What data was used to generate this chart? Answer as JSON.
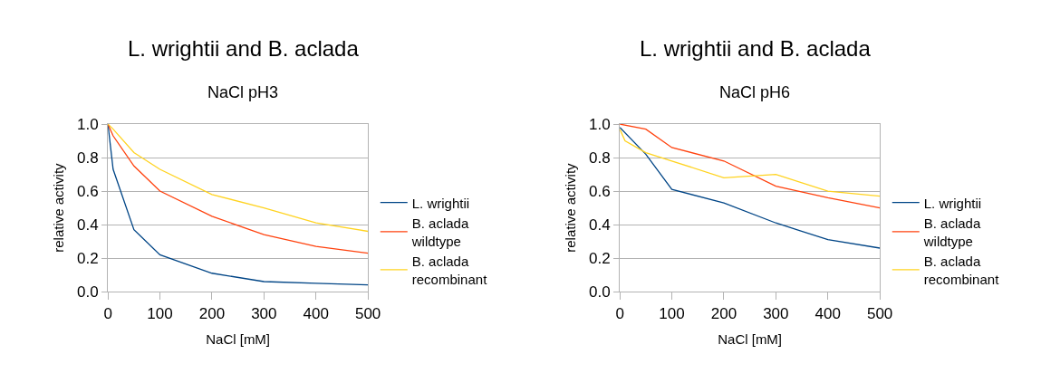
{
  "chart_data": [
    {
      "type": "line",
      "title": "L. wrightii and B. aclada",
      "subtitle": "NaCl pH3",
      "xlabel": "NaCl [mM]",
      "ylabel": "relative activity",
      "xlim": [
        0,
        500
      ],
      "xticks": [
        0,
        100,
        200,
        300,
        400,
        500
      ],
      "ylim": [
        0,
        1
      ],
      "yticks": [
        {
          "value": 0,
          "label": "0.0"
        },
        {
          "value": 0.2,
          "label": "0.2"
        },
        {
          "value": 0.4,
          "label": "0.4"
        },
        {
          "value": 0.6,
          "label": "0.6"
        },
        {
          "value": 0.8,
          "label": "0.8"
        },
        {
          "value": 1,
          "label": "1.0"
        }
      ],
      "grid": "y",
      "legend": "right",
      "marker": "none",
      "line_style": "solid",
      "series": [
        {
          "name": "L. wrightii",
          "color": "#004586",
          "x": [
            0,
            10,
            50,
            100,
            200,
            300,
            400,
            500
          ],
          "values": [
            1.0,
            0.73,
            0.37,
            0.22,
            0.11,
            0.06,
            0.05,
            0.04
          ]
        },
        {
          "name": "B. aclada\nwildtype",
          "color": "#ff420e",
          "x": [
            0,
            10,
            50,
            100,
            200,
            300,
            400,
            500
          ],
          "values": [
            1.0,
            0.93,
            0.75,
            0.6,
            0.45,
            0.34,
            0.27,
            0.23
          ]
        },
        {
          "name": "B. aclada\nrecombinant",
          "color": "#ffd320",
          "x": [
            0,
            10,
            50,
            100,
            200,
            300,
            400,
            500
          ],
          "values": [
            1.0,
            0.97,
            0.83,
            0.73,
            0.58,
            0.5,
            0.41,
            0.36
          ]
        }
      ]
    },
    {
      "type": "line",
      "title": "L. wrightii and B. aclada",
      "subtitle": "NaCl pH6",
      "xlabel": "NaCl [mM]",
      "ylabel": "relative activity",
      "xlim": [
        0,
        500
      ],
      "xticks": [
        0,
        100,
        200,
        300,
        400,
        500
      ],
      "ylim": [
        0,
        1
      ],
      "yticks": [
        {
          "value": 0,
          "label": "0.0"
        },
        {
          "value": 0.2,
          "label": "0.2"
        },
        {
          "value": 0.4,
          "label": "0.4"
        },
        {
          "value": 0.6,
          "label": "0.6"
        },
        {
          "value": 0.8,
          "label": "0.8"
        },
        {
          "value": 1,
          "label": "1.0"
        }
      ],
      "grid": "y",
      "legend": "right",
      "marker": "none",
      "line_style": "solid",
      "series": [
        {
          "name": "L. wrightii",
          "color": "#004586",
          "x": [
            0,
            50,
            100,
            200,
            300,
            400,
            500
          ],
          "values": [
            0.98,
            0.82,
            0.61,
            0.53,
            0.41,
            0.31,
            0.26
          ]
        },
        {
          "name": "B. aclada\nwildtype",
          "color": "#ff420e",
          "x": [
            0,
            50,
            100,
            200,
            300,
            400,
            500
          ],
          "values": [
            1.0,
            0.97,
            0.86,
            0.78,
            0.63,
            0.56,
            0.5
          ]
        },
        {
          "name": "B. aclada\nrecombinant",
          "color": "#ffd320",
          "x": [
            0,
            10,
            50,
            100,
            200,
            300,
            400,
            500
          ],
          "values": [
            0.97,
            0.9,
            0.83,
            0.78,
            0.68,
            0.7,
            0.6,
            0.57
          ]
        }
      ]
    }
  ]
}
